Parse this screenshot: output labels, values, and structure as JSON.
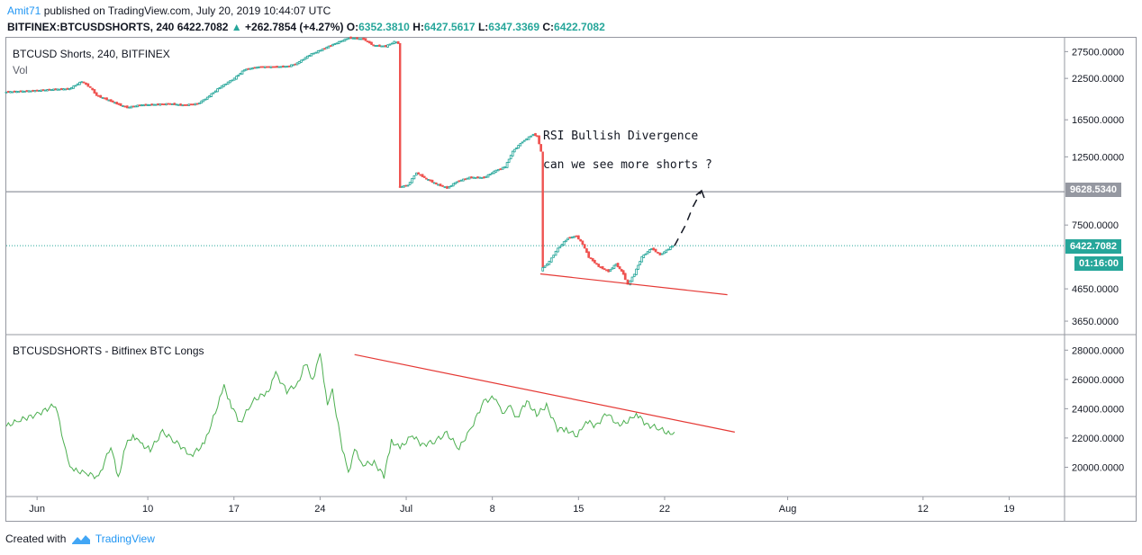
{
  "header": {
    "author": "Amit71",
    "published_text": "published on TradingView.com, July 20, 2019 10:44:07 UTC",
    "symbol": "BITFINEX:BTCUSDSHORTS, 240",
    "last": "6422.7082",
    "change_arrow": "▲",
    "change": "+262.7854 (+4.27%)",
    "o_label": "O:",
    "o_val": "6352.3810",
    "h_label": "H:",
    "h_val": "6427.5617",
    "l_label": "L:",
    "l_val": "6347.3369",
    "c_label": "C:",
    "c_val": "6422.7082"
  },
  "footer": {
    "created_with": "Created with",
    "brand": "TradingView",
    "logo_icon": "tradingview-logo-icon"
  },
  "colors": {
    "up": "#26a69a",
    "down": "#ef5350",
    "line": "#4caf50",
    "trend": "#e53935",
    "grid": "#9598a1",
    "accent": "#2196f3"
  },
  "chart_data": [
    {
      "type": "candlestick",
      "title": "BTCUSD Shorts, 240, BITFINEX",
      "subtitle": "Vol",
      "yscale": "log",
      "y_ticks": [
        "27500.0000",
        "22500.0000",
        "16500.0000",
        "12500.0000",
        "7500.0000",
        "4650.0000",
        "3650.0000"
      ],
      "y_tick_values": [
        27500,
        22500,
        16500,
        12500,
        7500,
        4650,
        3650
      ],
      "ylim": [
        3300,
        30500
      ],
      "x_ticks": [
        "Jun",
        "10",
        "17",
        "24",
        "Jul",
        "8",
        "15",
        "22",
        "Aug",
        "12",
        "19"
      ],
      "x_tick_days": [
        0,
        9,
        16,
        23,
        30,
        37,
        44,
        51,
        61,
        72,
        79
      ],
      "xlim_days": [
        -2.5,
        83.5
      ],
      "price_points": [
        [
          -2.5,
          20300
        ],
        [
          0,
          20500
        ],
        [
          1.5,
          20700
        ],
        [
          2.8,
          20800
        ],
        [
          3.8,
          22000
        ],
        [
          4.5,
          21000
        ],
        [
          5,
          19800
        ],
        [
          6,
          19100
        ],
        [
          6.8,
          18500
        ],
        [
          7.5,
          18100
        ],
        [
          8.5,
          18400
        ],
        [
          10,
          18500
        ],
        [
          11,
          18600
        ],
        [
          12,
          18400
        ],
        [
          13.2,
          18600
        ],
        [
          14,
          19500
        ],
        [
          15,
          21000
        ],
        [
          16.2,
          22500
        ],
        [
          17,
          24000
        ],
        [
          18.2,
          24500
        ],
        [
          19.5,
          24500
        ],
        [
          20.5,
          24600
        ],
        [
          21.3,
          25200
        ],
        [
          22.3,
          26800
        ],
        [
          23.2,
          27800
        ],
        [
          24.2,
          29000
        ],
        [
          25.5,
          30500
        ],
        [
          26.7,
          30200
        ],
        [
          27.5,
          28800
        ],
        [
          28.5,
          28600
        ],
        [
          29.2,
          29600
        ],
        [
          29.5,
          29300
        ],
        [
          29.5,
          9950
        ],
        [
          30.3,
          10100
        ],
        [
          31,
          11100
        ],
        [
          31.8,
          10600
        ],
        [
          32.6,
          10200
        ],
        [
          33.5,
          9900
        ],
        [
          34.3,
          10400
        ],
        [
          35.3,
          10700
        ],
        [
          36.5,
          10700
        ],
        [
          37.3,
          11200
        ],
        [
          38.2,
          11600
        ],
        [
          38.8,
          13000
        ],
        [
          39.6,
          14000
        ],
        [
          40.5,
          14800
        ],
        [
          40.8,
          14600
        ],
        [
          41.1,
          13000
        ],
        [
          41.1,
          5350
        ],
        [
          41.8,
          5700
        ],
        [
          42.5,
          6300
        ],
        [
          43.3,
          6800
        ],
        [
          44,
          6900
        ],
        [
          44.5,
          6500
        ],
        [
          45,
          5900
        ],
        [
          45.8,
          5500
        ],
        [
          46.6,
          5300
        ],
        [
          47.2,
          5600
        ],
        [
          47.8,
          5200
        ],
        [
          48.2,
          4800
        ],
        [
          48.7,
          5200
        ],
        [
          49.3,
          5900
        ],
        [
          50.1,
          6300
        ],
        [
          50.8,
          6000
        ],
        [
          51.3,
          6200
        ],
        [
          51.8,
          6420
        ]
      ],
      "projection": [
        [
          51.8,
          6420
        ],
        [
          52.7,
          7500
        ],
        [
          53.3,
          8600
        ],
        [
          54,
          9700
        ]
      ],
      "support_trendline": [
        [
          40.9,
          5200
        ],
        [
          56.1,
          4450
        ]
      ],
      "horizontal_level": {
        "value": 9628.534,
        "label": "9628.5340"
      },
      "last_price_label": "6422.7082",
      "countdown_label": "01:16:00",
      "annotations": [
        "RSI Bullish Divergence",
        "can we see more shorts ?"
      ]
    },
    {
      "type": "line",
      "title": "BTCUSDSHORTS - Bitfinex BTC Longs",
      "y_ticks": [
        "28000.0000",
        "26000.0000",
        "24000.0000",
        "22000.0000",
        "20000.0000"
      ],
      "y_tick_values": [
        28000,
        26000,
        24000,
        22000,
        20000
      ],
      "ylim": [
        18000,
        29000
      ],
      "series": [
        {
          "name": "Bitfinex BTC Longs",
          "x": [
            -2.5,
            -1.5,
            0,
            1.5,
            2.5,
            3,
            4,
            5,
            6,
            6.6,
            7.2,
            7.8,
            8.4,
            9.2,
            10.2,
            11.2,
            12.5,
            13.6,
            14.5,
            15.2,
            15.8,
            16.5,
            17.5,
            18.8,
            19.4,
            20.3,
            21.2,
            21.8,
            22.4,
            23,
            23.6,
            24,
            24.8,
            25.3,
            25.8,
            26.5,
            27.4,
            28.2,
            28.8,
            29.5,
            30.5,
            31.3,
            32.3,
            33.3,
            34.3,
            35.3,
            36.3,
            37.3,
            37.8,
            38.3,
            39,
            39.8,
            40.6,
            41.4,
            42.3,
            43,
            43.9,
            44.6,
            45.4,
            46.3,
            47.2,
            48,
            48.7,
            49.5,
            50.5,
            51.3,
            51.8
          ],
          "values": [
            22800,
            23200,
            23600,
            24300,
            20400,
            19800,
            19600,
            19300,
            21500,
            19200,
            21500,
            22200,
            21600,
            21200,
            22400,
            21800,
            20800,
            21600,
            23800,
            25500,
            24200,
            23000,
            24500,
            25200,
            26400,
            25200,
            25700,
            27100,
            26000,
            27700,
            24400,
            25200,
            21300,
            19600,
            21200,
            20200,
            20300,
            19400,
            21800,
            21300,
            22200,
            21500,
            21800,
            22300,
            21300,
            22700,
            24500,
            24800,
            23500,
            24300,
            23400,
            24500,
            23600,
            24200,
            22600,
            22600,
            22100,
            23200,
            22800,
            23700,
            22900,
            23100,
            23700,
            22900,
            22700,
            22300,
            22400
          ]
        }
      ],
      "trendline": [
        [
          25.8,
          27700
        ],
        [
          56.7,
          22400
        ]
      ]
    }
  ]
}
